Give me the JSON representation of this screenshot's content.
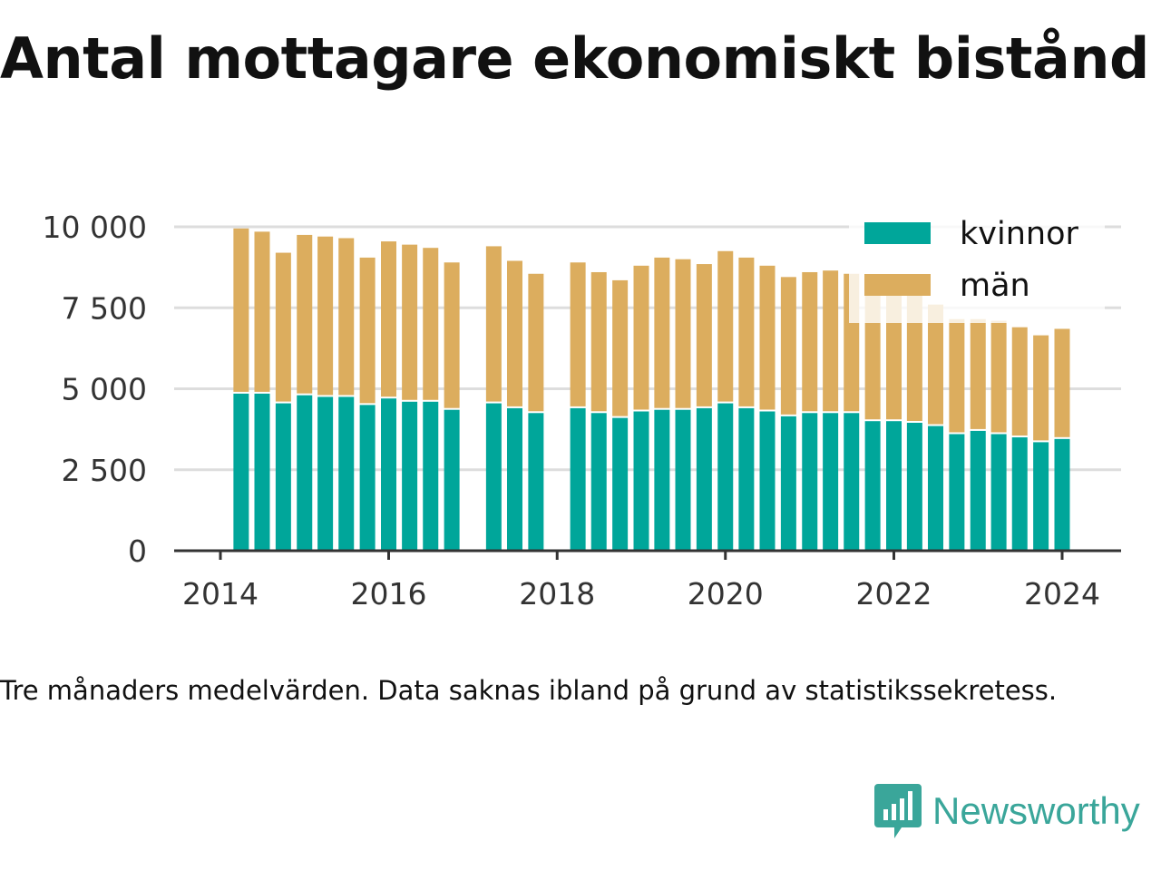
{
  "title": "Antal mottagare ekonomiskt bistånd",
  "footnote": "Tre månaders medelvärden. Data saknas ibland på grund av statistikssekretess.",
  "brand": {
    "name": "Newsworthy"
  },
  "colors": {
    "kvinnor": "#00a69a",
    "man": "#dcad5e",
    "grid": "#dddddd",
    "axis": "#333333",
    "text": "#333333",
    "brand": "#3aa69a"
  },
  "chart_data": {
    "type": "bar",
    "stacked": true,
    "x_ticks": [
      "2014",
      "2016",
      "2018",
      "2020",
      "2022",
      "2024"
    ],
    "y_ticks": [
      "0",
      "2 500",
      "5 000",
      "7 500",
      "10 000"
    ],
    "ylim": [
      0,
      10000
    ],
    "grid": true,
    "legend_position": "top-right",
    "x": [
      "2014-04",
      "2014-07",
      "2014-10",
      "2015-01",
      "2015-04",
      "2015-07",
      "2015-10",
      "2016-01",
      "2016-04",
      "2016-07",
      "2016-10",
      "2017-01",
      "2017-04",
      "2017-07",
      "2017-10",
      "2018-01",
      "2018-04",
      "2018-07",
      "2018-10",
      "2019-01",
      "2019-04",
      "2019-07",
      "2019-10",
      "2020-01",
      "2020-04",
      "2020-07",
      "2020-10",
      "2021-01",
      "2021-04",
      "2021-07",
      "2021-10",
      "2022-01",
      "2022-04",
      "2022-07",
      "2022-10",
      "2023-01",
      "2023-04",
      "2023-07",
      "2023-10",
      "2024-01"
    ],
    "series": [
      {
        "name": "kvinnor",
        "values": [
          4850,
          4850,
          4550,
          4800,
          4750,
          4750,
          4500,
          4700,
          4600,
          4600,
          4350,
          null,
          4550,
          4400,
          4250,
          null,
          4400,
          4250,
          4100,
          4300,
          4350,
          4350,
          4400,
          4550,
          4400,
          4300,
          4150,
          4250,
          4250,
          4250,
          4000,
          4000,
          3950,
          3850,
          3600,
          3700,
          3600,
          3500,
          3350,
          3450
        ]
      },
      {
        "name": "män",
        "values": [
          5100,
          5000,
          4650,
          4950,
          4950,
          4900,
          4550,
          4850,
          4850,
          4750,
          4550,
          null,
          4850,
          4550,
          4300,
          null,
          4500,
          4350,
          4250,
          4500,
          4700,
          4650,
          4450,
          4700,
          4650,
          4500,
          4300,
          4350,
          4400,
          4300,
          4250,
          4350,
          4000,
          3750,
          3550,
          3450,
          3500,
          3400,
          3300,
          3400
        ]
      }
    ]
  }
}
